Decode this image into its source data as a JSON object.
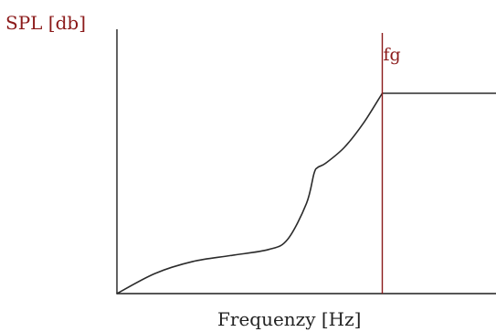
{
  "chart_data": {
    "type": "line",
    "ylabel": "SPL [db]",
    "xlabel": "Frequenzy [Hz]",
    "cutoff_label": "fg",
    "cutoff_x": 0.7,
    "xlim": [
      0,
      1
    ],
    "ylim": [
      0,
      1
    ],
    "series": [
      {
        "x": [
          0.0,
          0.1,
          0.2,
          0.3,
          0.4,
          0.45,
          0.5,
          0.52,
          0.53,
          0.55,
          0.6,
          0.65,
          0.7
        ],
        "y": [
          0.0,
          0.1,
          0.16,
          0.19,
          0.22,
          0.27,
          0.45,
          0.6,
          0.63,
          0.65,
          0.73,
          0.85,
          1.0
        ]
      }
    ],
    "plateau": {
      "x": [
        0.7,
        1.0
      ],
      "y": [
        1.0,
        1.0
      ]
    },
    "colors": {
      "axis": "#1f1f1f",
      "curve": "#2b2b2b",
      "cutoff": "#8b1a1a",
      "ylabel": "#8b1a1a",
      "xlabel": "#222222"
    }
  }
}
